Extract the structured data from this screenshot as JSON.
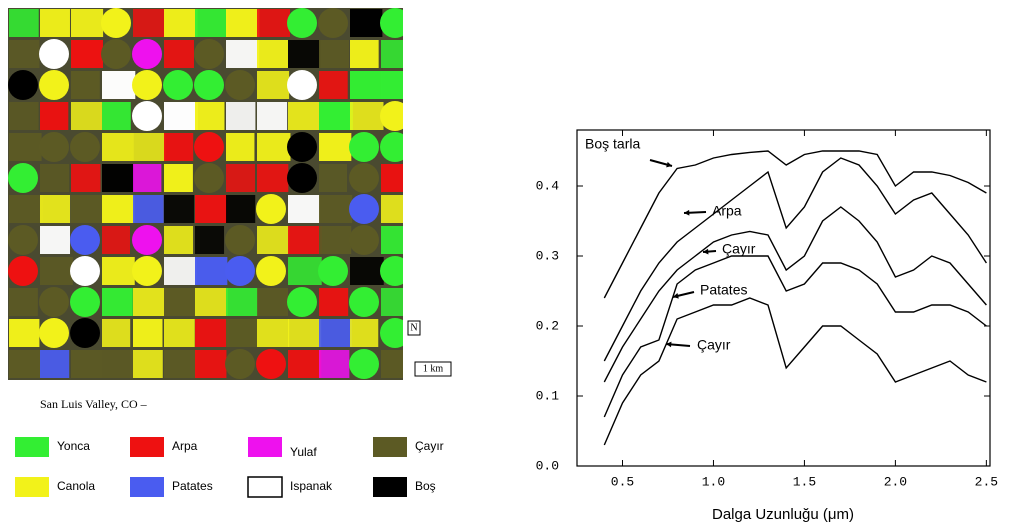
{
  "map": {
    "caption": "San Luis Valley, CO –",
    "north": "N",
    "scale": "1 km",
    "legend": [
      {
        "label": "Yonca",
        "color": "#33ee33"
      },
      {
        "label": "Arpa",
        "color": "#ee1111"
      },
      {
        "label": "Yulaf",
        "color": "#ee11ee"
      },
      {
        "label": "Çayır",
        "color": "#5c5a24"
      },
      {
        "label": "Canola",
        "color": "#f2f21a"
      },
      {
        "label": "Patates",
        "color": "#4a5cf0"
      },
      {
        "label": "Ispanak",
        "color": "#ffffff"
      },
      {
        "label": "Boş",
        "color": "#000000"
      }
    ]
  },
  "chart_data": {
    "type": "line",
    "x_label": "Dalga Uzunluğu (μm)",
    "x": [
      0.4,
      0.5,
      0.6,
      0.7,
      0.8,
      0.9,
      1.0,
      1.1,
      1.2,
      1.3,
      1.4,
      1.5,
      1.6,
      1.7,
      1.8,
      1.9,
      2.0,
      2.1,
      2.2,
      2.3,
      2.4,
      2.5
    ],
    "xlim": [
      0.25,
      2.52
    ],
    "xticks": [
      0.5,
      {
        "value": 1,
        "label": "1.0"
      },
      1.5,
      {
        "value": 2,
        "label": "2.0"
      },
      2.5
    ],
    "ylim": [
      0,
      0.48
    ],
    "yticks": [
      {
        "value": 0,
        "label": "0.0"
      },
      0.1,
      0.2,
      0.3,
      0.4
    ],
    "series": [
      {
        "name": "Boş tarla",
        "color": "#000000",
        "values": [
          0.24,
          0.29,
          0.34,
          0.39,
          0.425,
          0.43,
          0.44,
          0.445,
          0.448,
          0.45,
          0.43,
          0.445,
          0.45,
          0.45,
          0.45,
          0.445,
          0.4,
          0.42,
          0.42,
          0.415,
          0.405,
          0.39
        ]
      },
      {
        "name": "Arpa",
        "color": "#000000",
        "values": [
          0.15,
          0.2,
          0.25,
          0.29,
          0.32,
          0.34,
          0.36,
          0.38,
          0.4,
          0.42,
          0.34,
          0.37,
          0.42,
          0.44,
          0.43,
          0.4,
          0.36,
          0.38,
          0.39,
          0.36,
          0.33,
          0.29
        ]
      },
      {
        "name": "Çayır",
        "color": "#000000",
        "values": [
          0.12,
          0.17,
          0.21,
          0.25,
          0.28,
          0.3,
          0.32,
          0.33,
          0.335,
          0.33,
          0.28,
          0.3,
          0.35,
          0.37,
          0.35,
          0.32,
          0.27,
          0.28,
          0.3,
          0.29,
          0.26,
          0.23
        ]
      },
      {
        "name": "Patates",
        "color": "#000000",
        "values": [
          0.07,
          0.13,
          0.17,
          0.18,
          0.26,
          0.28,
          0.29,
          0.3,
          0.3,
          0.3,
          0.25,
          0.26,
          0.29,
          0.29,
          0.28,
          0.26,
          0.22,
          0.22,
          0.23,
          0.23,
          0.22,
          0.2
        ]
      },
      {
        "name": "Çayır",
        "color": "#000000",
        "values": [
          0.03,
          0.09,
          0.13,
          0.15,
          0.21,
          0.22,
          0.23,
          0.23,
          0.24,
          0.23,
          0.14,
          0.17,
          0.2,
          0.2,
          0.18,
          0.16,
          0.12,
          0.13,
          0.14,
          0.15,
          0.13,
          0.12
        ]
      }
    ]
  }
}
